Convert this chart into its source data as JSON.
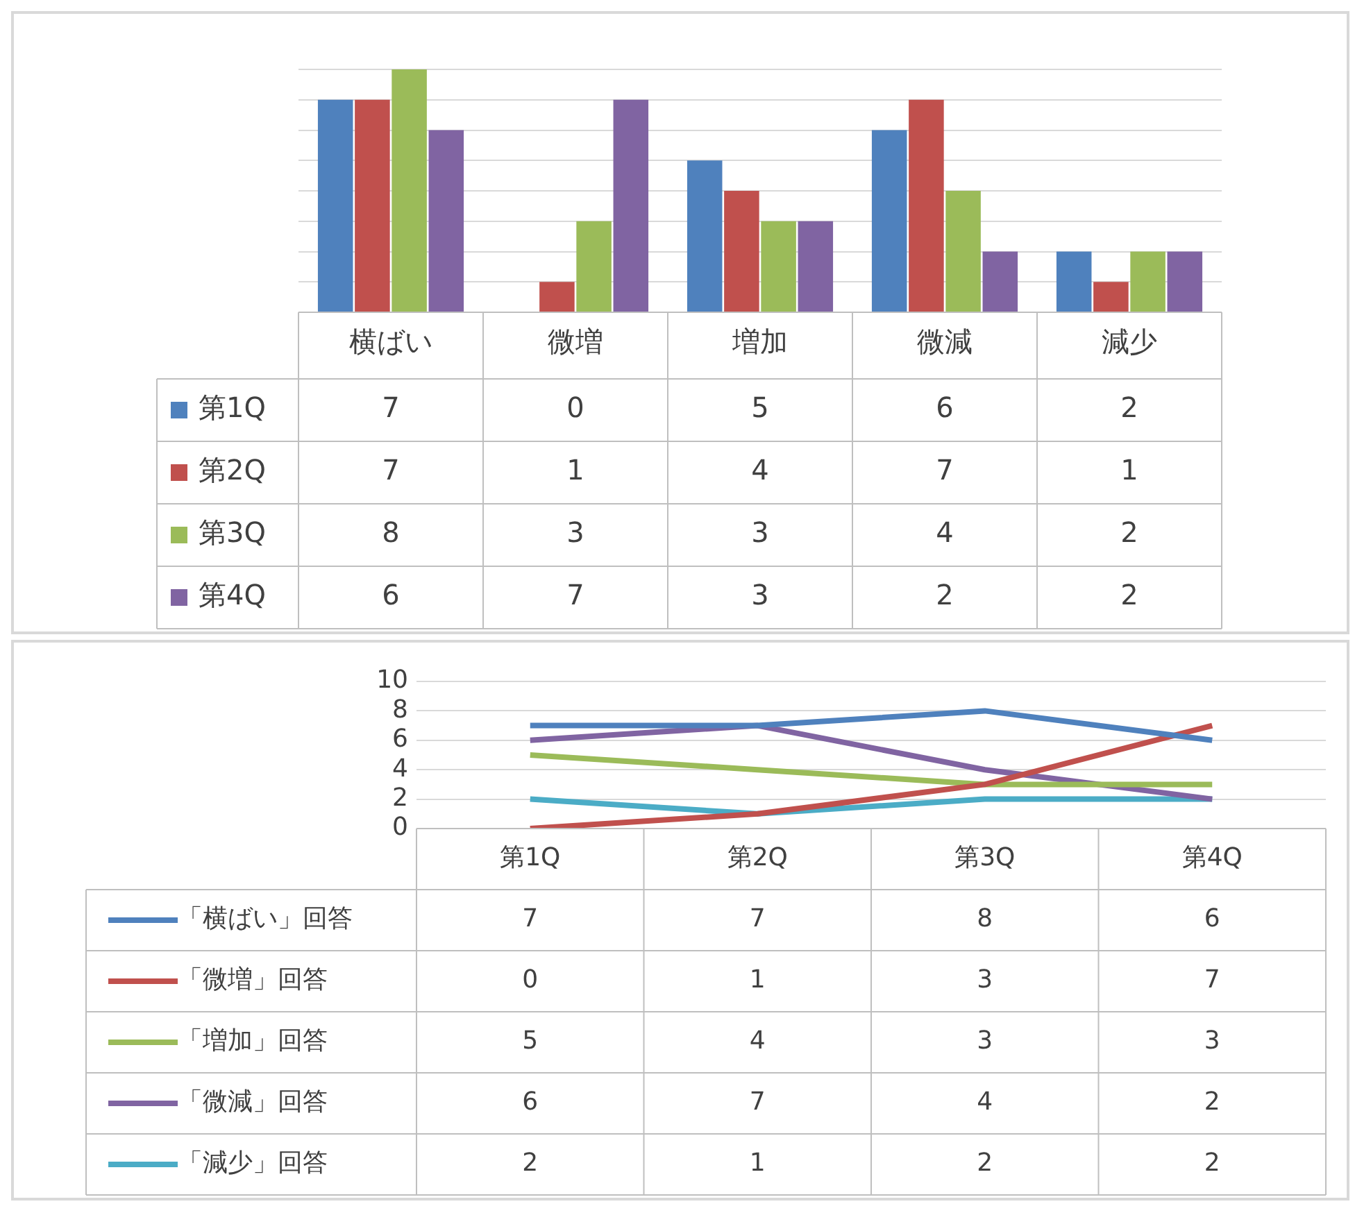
{
  "chart_data": [
    {
      "type": "bar",
      "categories": [
        "横ばい",
        "微増",
        "増加",
        "微減",
        "減少"
      ],
      "series": [
        {
          "name": "第1Q",
          "color": "#4f81bd",
          "values": [
            7,
            0,
            5,
            6,
            2
          ]
        },
        {
          "name": "第2Q",
          "color": "#c0504d",
          "values": [
            7,
            1,
            4,
            7,
            1
          ]
        },
        {
          "name": "第3Q",
          "color": "#9bbb59",
          "values": [
            8,
            3,
            3,
            4,
            2
          ]
        },
        {
          "name": "第4Q",
          "color": "#8064a2",
          "values": [
            6,
            7,
            3,
            2,
            2
          ]
        }
      ],
      "ylim": [
        0,
        8
      ],
      "yticks": [
        {
          "value": 0,
          "label": null
        },
        {
          "value": 1,
          "label": null
        },
        {
          "value": 2,
          "label": null
        },
        {
          "value": 3,
          "label": null
        },
        {
          "value": 4,
          "label": null
        },
        {
          "value": 5,
          "label": null
        },
        {
          "value": 6,
          "label": null
        },
        {
          "value": 7,
          "label": null
        },
        {
          "value": 8,
          "label": null
        }
      ],
      "grid": "y",
      "legend": "left",
      "data_labels": true,
      "tick_labels": "x"
    },
    {
      "type": "line",
      "categories": [
        "第1Q",
        "第2Q",
        "第3Q",
        "第4Q"
      ],
      "series": [
        {
          "name": "「横ばい」回答",
          "color": "#4f81bd",
          "values": [
            7,
            7,
            8,
            6
          ]
        },
        {
          "name": "「微増」回答",
          "color": "#c0504d",
          "values": [
            0,
            1,
            3,
            7
          ]
        },
        {
          "name": "「増加」回答",
          "color": "#9bbb59",
          "values": [
            5,
            4,
            3,
            3
          ]
        },
        {
          "name": "「微減」回答",
          "color": "#8064a2",
          "values": [
            6,
            7,
            4,
            2
          ]
        },
        {
          "name": "「減少」回答",
          "color": "#4bacc6",
          "values": [
            2,
            1,
            2,
            2
          ]
        }
      ],
      "ylim": [
        0,
        10
      ],
      "yticks": [
        0,
        2,
        4,
        6,
        8,
        10
      ],
      "grid": "y",
      "legend": "left",
      "data_labels": true,
      "marker": "none"
    }
  ]
}
